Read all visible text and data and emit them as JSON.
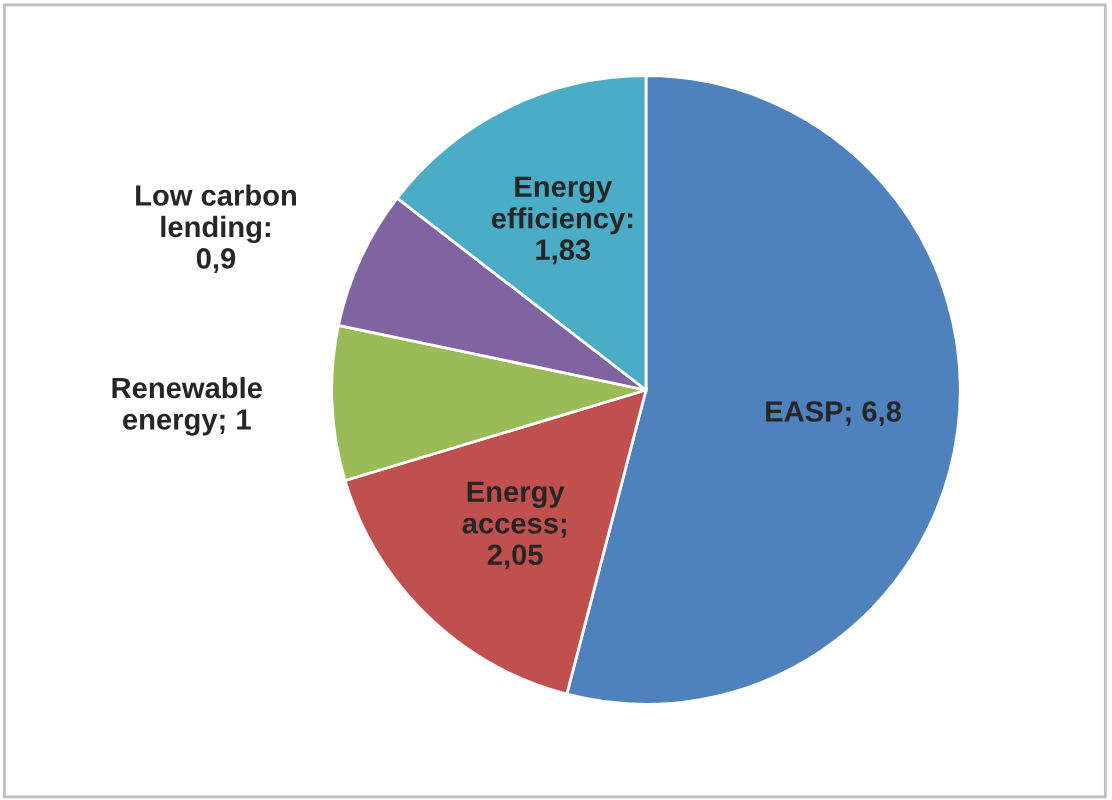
{
  "chart_data": {
    "type": "pie",
    "categories": [
      "EASP",
      "Energy access",
      "Renewable energy",
      "Low carbon lending",
      "Energy efficiency"
    ],
    "values": [
      6.8,
      2.05,
      1,
      0.9,
      1.83
    ],
    "colors": [
      "#4f81bd",
      "#c0504d",
      "#9bbb59",
      "#8064a2",
      "#4bacc6"
    ],
    "value_labels": [
      "; 6,8",
      ";\n2,05",
      "; 1",
      ":\n0,9",
      ":\n1,83"
    ],
    "legend": false
  }
}
